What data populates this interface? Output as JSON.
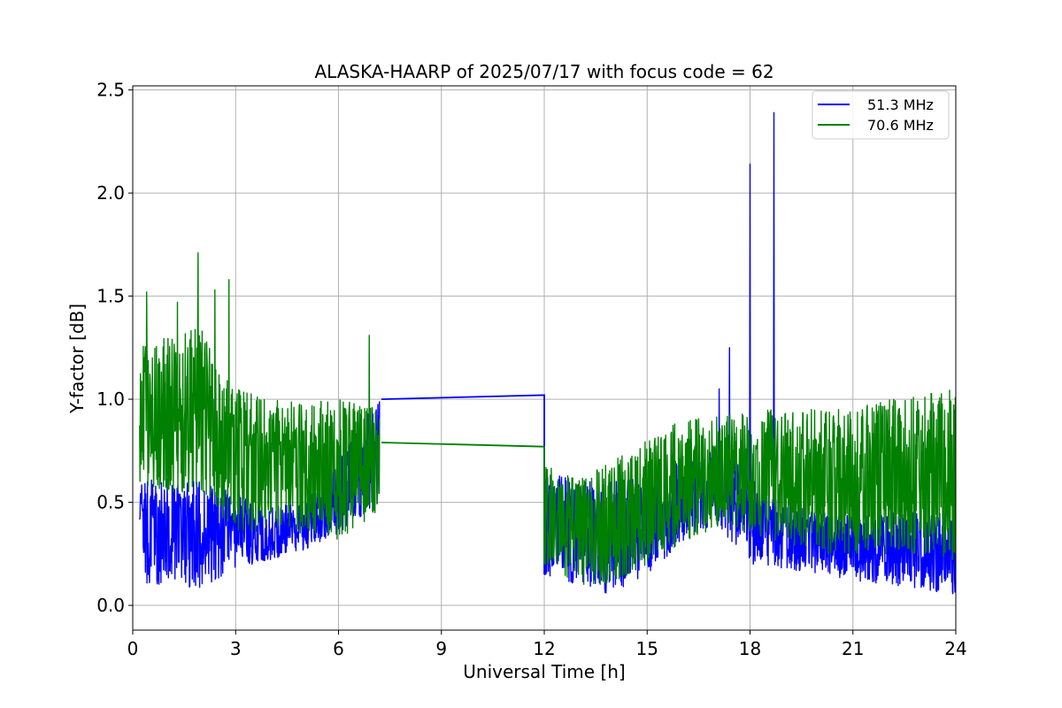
{
  "chart_data": {
    "type": "line",
    "title": "ALASKA-HAARP of 2025/07/17 with focus code = 62",
    "xlabel": "Universal Time [h]",
    "ylabel": "Y-factor [dB]",
    "xlim": [
      0,
      24
    ],
    "ylim": [
      -0.12,
      2.52
    ],
    "xticks": [
      0,
      3,
      6,
      9,
      12,
      15,
      18,
      21,
      24
    ],
    "xtick_labels": [
      "0",
      "3",
      "6",
      "9",
      "12",
      "15",
      "18",
      "21",
      "24"
    ],
    "yticks": [
      0.0,
      0.5,
      1.0,
      1.5,
      2.0,
      2.5
    ],
    "ytick_labels": [
      "0.0",
      "0.5",
      "1.0",
      "1.5",
      "2.0",
      "2.5"
    ],
    "grid": true,
    "legend_position": "top-right",
    "gaps": [
      [
        7.25,
        12.0
      ]
    ],
    "series": [
      {
        "name": "51.3 MHz",
        "color": "#0000ff",
        "envelope": [
          {
            "x": 0.2,
            "low": 0.1,
            "high": 0.6
          },
          {
            "x": 1.0,
            "low": 0.1,
            "high": 0.62
          },
          {
            "x": 2.0,
            "low": 0.08,
            "high": 0.6
          },
          {
            "x": 3.0,
            "low": 0.18,
            "high": 0.55
          },
          {
            "x": 4.0,
            "low": 0.22,
            "high": 0.48
          },
          {
            "x": 5.0,
            "low": 0.27,
            "high": 0.5
          },
          {
            "x": 6.0,
            "low": 0.35,
            "high": 0.7
          },
          {
            "x": 7.2,
            "low": 0.5,
            "high": 1.02
          },
          {
            "x": 12.0,
            "low": 0.15,
            "high": 0.65
          },
          {
            "x": 13.0,
            "low": 0.1,
            "high": 0.6
          },
          {
            "x": 14.0,
            "low": 0.05,
            "high": 0.6
          },
          {
            "x": 15.0,
            "low": 0.15,
            "high": 0.62
          },
          {
            "x": 16.0,
            "low": 0.3,
            "high": 0.7
          },
          {
            "x": 17.0,
            "low": 0.4,
            "high": 0.75
          },
          {
            "x": 18.0,
            "low": 0.2,
            "high": 0.7
          },
          {
            "x": 19.0,
            "low": 0.18,
            "high": 0.5
          },
          {
            "x": 20.0,
            "low": 0.15,
            "high": 0.45
          },
          {
            "x": 21.0,
            "low": 0.12,
            "high": 0.45
          },
          {
            "x": 22.0,
            "low": 0.1,
            "high": 0.45
          },
          {
            "x": 23.0,
            "low": 0.08,
            "high": 0.45
          },
          {
            "x": 24.0,
            "low": 0.05,
            "high": 0.45
          }
        ],
        "connector": [
          [
            7.25,
            1.0
          ],
          [
            12.0,
            1.02
          ]
        ],
        "spikes": [
          [
            17.4,
            1.25
          ],
          [
            18.0,
            2.14
          ],
          [
            18.7,
            2.39
          ],
          [
            17.1,
            1.05
          ]
        ]
      },
      {
        "name": "70.6 MHz",
        "color": "#008000",
        "envelope": [
          {
            "x": 0.2,
            "low": 0.55,
            "high": 1.25
          },
          {
            "x": 1.0,
            "low": 0.55,
            "high": 1.3
          },
          {
            "x": 2.0,
            "low": 0.55,
            "high": 1.35
          },
          {
            "x": 2.5,
            "low": 0.45,
            "high": 1.2
          },
          {
            "x": 3.0,
            "low": 0.35,
            "high": 1.05
          },
          {
            "x": 4.0,
            "low": 0.35,
            "high": 1.0
          },
          {
            "x": 5.0,
            "low": 0.35,
            "high": 0.98
          },
          {
            "x": 6.0,
            "low": 0.32,
            "high": 1.0
          },
          {
            "x": 7.2,
            "low": 0.45,
            "high": 0.95
          },
          {
            "x": 12.0,
            "low": 0.2,
            "high": 0.68
          },
          {
            "x": 13.0,
            "low": 0.1,
            "high": 0.62
          },
          {
            "x": 14.0,
            "low": 0.1,
            "high": 0.7
          },
          {
            "x": 15.0,
            "low": 0.2,
            "high": 0.8
          },
          {
            "x": 16.0,
            "low": 0.3,
            "high": 0.9
          },
          {
            "x": 17.0,
            "low": 0.38,
            "high": 0.92
          },
          {
            "x": 18.0,
            "low": 0.35,
            "high": 0.95
          },
          {
            "x": 19.0,
            "low": 0.3,
            "high": 0.95
          },
          {
            "x": 20.0,
            "low": 0.25,
            "high": 0.95
          },
          {
            "x": 21.0,
            "low": 0.25,
            "high": 0.95
          },
          {
            "x": 22.0,
            "low": 0.25,
            "high": 1.0
          },
          {
            "x": 23.0,
            "low": 0.25,
            "high": 1.02
          },
          {
            "x": 24.0,
            "low": 0.22,
            "high": 1.05
          }
        ],
        "connector": [
          [
            7.25,
            0.79
          ],
          [
            12.0,
            0.77
          ]
        ],
        "spikes": [
          [
            0.4,
            1.52
          ],
          [
            1.9,
            1.71
          ],
          [
            2.8,
            1.58
          ],
          [
            2.4,
            1.53
          ],
          [
            6.9,
            1.31
          ],
          [
            1.3,
            1.47
          ]
        ]
      }
    ]
  }
}
